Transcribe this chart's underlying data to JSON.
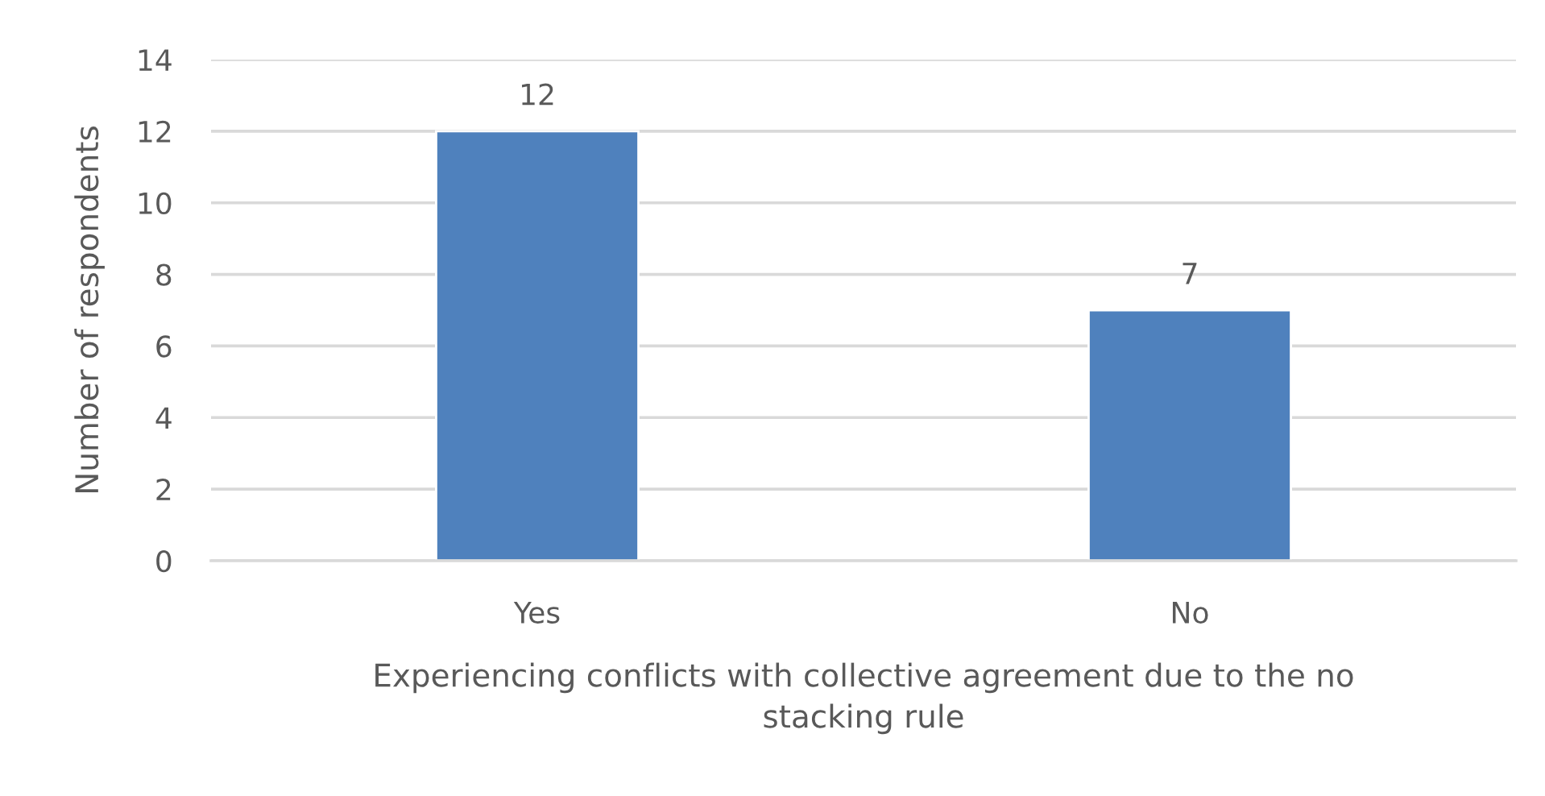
{
  "chart_data": {
    "type": "bar",
    "xlabel": "Experiencing conflicts with collective agreement due to the no\nstacking rule",
    "ylabel": "Number of respondents",
    "categories": [
      "Yes",
      "No"
    ],
    "values": [
      12,
      7
    ],
    "color": "#4f81bd",
    "ylim": [
      0,
      14
    ],
    "yticks": [
      0,
      2,
      4,
      6,
      8,
      10,
      12,
      14
    ],
    "grid": "y",
    "data_labels": true
  }
}
